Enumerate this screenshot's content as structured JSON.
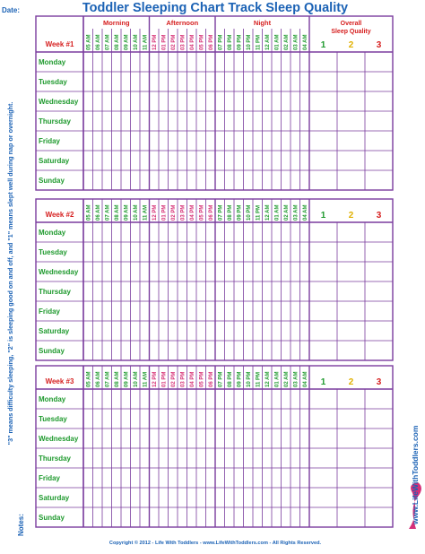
{
  "header": {
    "date_label": "Date:",
    "title": "Toddler Sleeping Chart Track Sleep Quality"
  },
  "groups": [
    {
      "name": "Morning",
      "times": [
        "05 AM",
        "06 AM",
        "07 AM",
        "08 AM",
        "09 AM",
        "10 AM",
        "11 AM"
      ]
    },
    {
      "name": "Afternoon",
      "times": [
        "12 PM",
        "01 PM",
        "02 PM",
        "03 PM",
        "04 PM",
        "05 PM",
        "06 PM"
      ]
    },
    {
      "name": "Night",
      "times": [
        "07 PM",
        "08 PM",
        "09 PM",
        "10 PM",
        "11 PM",
        "12 AM",
        "01 AM",
        "02 AM",
        "03 AM",
        "04 AM"
      ]
    }
  ],
  "quality": {
    "title_lines": [
      "Overall",
      "Sleep Quality"
    ],
    "levels": [
      "1",
      "2",
      "3"
    ]
  },
  "weeks": [
    "Week #1",
    "Week #2",
    "Week #3"
  ],
  "days": [
    "Monday",
    "Tuesday",
    "Wednesday",
    "Thursday",
    "Friday",
    "Saturday",
    "Sunday"
  ],
  "side_note": "\"3\" means difficulty sleeping, \"2\" is sleeping good on and off, and \"1\" means slept well during nap or overnight.",
  "notes_label": "Notes:",
  "footer": "Copyright © 2012 - Life With Toddlers - www.LifeWithToddlers.com - All Rights Reserved.",
  "website": "www.LifeWithToddlers.com"
}
